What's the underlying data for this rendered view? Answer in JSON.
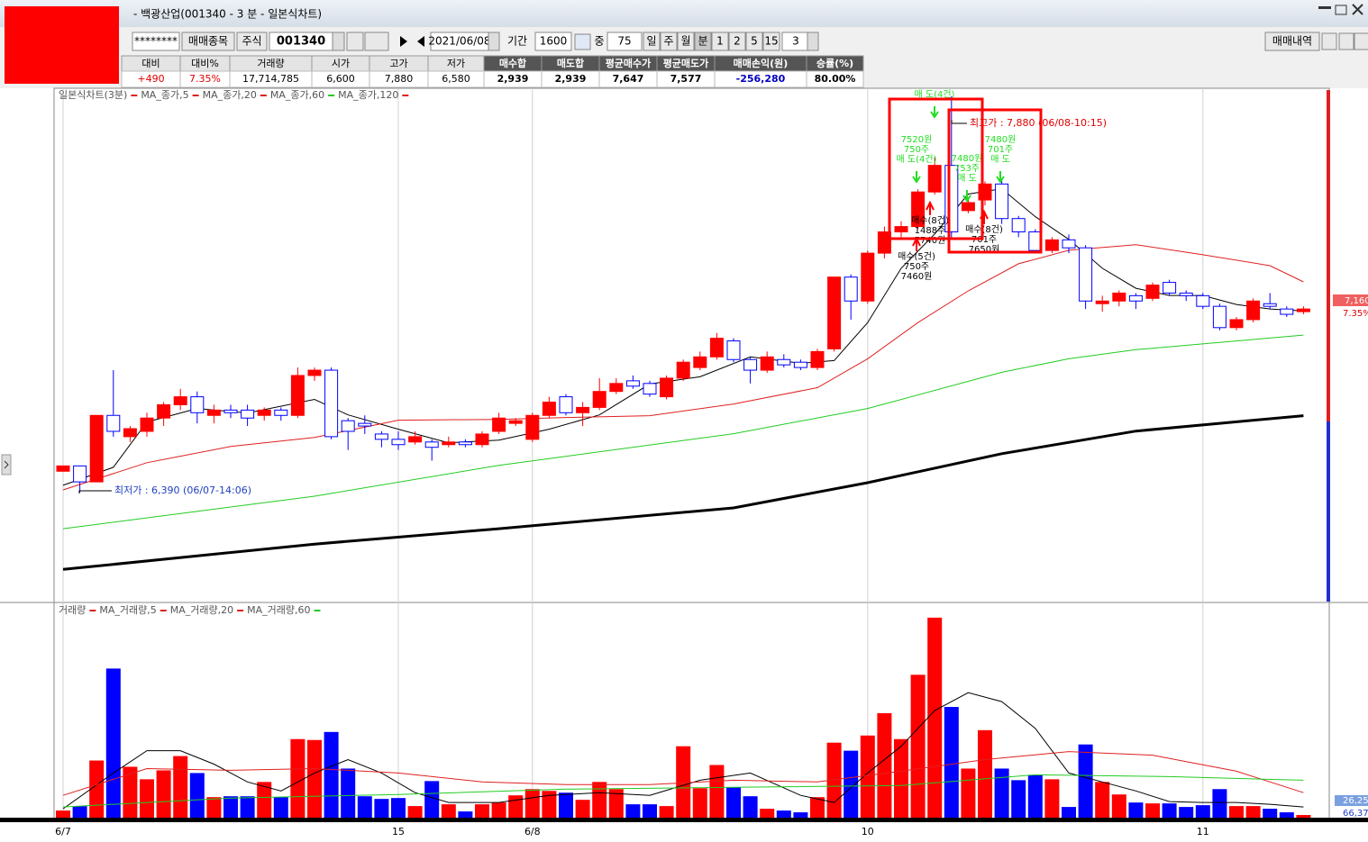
{
  "window_title": "- 백광산업(001340 - 3 분 - 일본식차트)",
  "toolbar": {
    "mask": "********",
    "trade_item_button": "매매종목",
    "market": "주식",
    "code": "001340",
    "date": "2021/06/08",
    "period_label": "기간",
    "period": "1600",
    "mid_label": "중",
    "mid": "75",
    "units": [
      "일",
      "주",
      "월",
      "분",
      "1",
      "2",
      "5",
      "15"
    ],
    "interval": "3",
    "history_button": "매매내역"
  },
  "info_table": {
    "headers": [
      "대비",
      "대비%",
      "거래량",
      "시가",
      "고가",
      "저가",
      "매수합",
      "매도합",
      "평균매수가",
      "평균매도가",
      "매매손익(원)",
      "승률(%)"
    ],
    "values": [
      "+490",
      "7.35%",
      "17,714,785",
      "6,600",
      "7,880",
      "6,580",
      "2,939",
      "2,939",
      "7,647",
      "7,577",
      "-256,280",
      "80.00%"
    ]
  },
  "chart_data": [
    {
      "type": "candlestick",
      "label": "일본식차트(3분)",
      "up_color": "#ff0000",
      "down_color": "#0000ff",
      "ylim": [
        5980,
        7910
      ],
      "categories": [
        "6/7",
        null,
        null,
        null,
        null,
        null,
        null,
        null,
        null,
        null,
        null,
        null,
        null,
        null,
        null,
        null,
        null,
        null,
        null,
        null,
        "15",
        null,
        null,
        null,
        null,
        null,
        null,
        null,
        "6/8",
        null,
        null,
        null,
        null,
        null,
        null,
        null,
        null,
        null,
        null,
        null,
        null,
        null,
        null,
        null,
        null,
        null,
        null,
        null,
        "10",
        null,
        null,
        null,
        null,
        null,
        null,
        null,
        null,
        null,
        null,
        null,
        null,
        null,
        null,
        null,
        null,
        null,
        null,
        null,
        "11",
        null,
        null,
        null,
        null,
        null,
        null
      ],
      "candles": [
        [
          6470,
          6490,
          6470,
          6490
        ],
        [
          6490,
          6490,
          6390,
          6430
        ],
        [
          6430,
          6680,
          6430,
          6680
        ],
        [
          6680,
          6850,
          6600,
          6620
        ],
        [
          6600,
          6640,
          6580,
          6630
        ],
        [
          6620,
          6690,
          6600,
          6670
        ],
        [
          6670,
          6730,
          6640,
          6720
        ],
        [
          6720,
          6780,
          6700,
          6750
        ],
        [
          6750,
          6770,
          6650,
          6690
        ],
        [
          6680,
          6720,
          6650,
          6700
        ],
        [
          6700,
          6720,
          6670,
          6690
        ],
        [
          6700,
          6720,
          6640,
          6670
        ],
        [
          6680,
          6710,
          6660,
          6700
        ],
        [
          6700,
          6710,
          6660,
          6680
        ],
        [
          6680,
          6860,
          6670,
          6830
        ],
        [
          6830,
          6860,
          6810,
          6850
        ],
        [
          6850,
          6860,
          6590,
          6600
        ],
        [
          6660,
          6670,
          6550,
          6620
        ],
        [
          6650,
          6680,
          6610,
          6640
        ],
        [
          6610,
          6620,
          6560,
          6590
        ],
        [
          6590,
          6620,
          6550,
          6570
        ],
        [
          6580,
          6620,
          6570,
          6600
        ],
        [
          6580,
          6590,
          6510,
          6560
        ],
        [
          6570,
          6600,
          6560,
          6580
        ],
        [
          6580,
          6590,
          6560,
          6570
        ],
        [
          6570,
          6620,
          6560,
          6610
        ],
        [
          6620,
          6690,
          6610,
          6670
        ],
        [
          6650,
          6670,
          6640,
          6660
        ],
        [
          6590,
          6690,
          6580,
          6680
        ],
        [
          6680,
          6750,
          6670,
          6730
        ],
        [
          6750,
          6760,
          6680,
          6690
        ],
        [
          6690,
          6730,
          6640,
          6710
        ],
        [
          6710,
          6820,
          6700,
          6770
        ],
        [
          6770,
          6820,
          6760,
          6800
        ],
        [
          6810,
          6830,
          6780,
          6790
        ],
        [
          6800,
          6810,
          6750,
          6760
        ],
        [
          6750,
          6830,
          6740,
          6820
        ],
        [
          6820,
          6890,
          6810,
          6880
        ],
        [
          6860,
          6920,
          6850,
          6900
        ],
        [
          6900,
          6990,
          6890,
          6970
        ],
        [
          6960,
          6970,
          6880,
          6890
        ],
        [
          6890,
          6900,
          6800,
          6850
        ],
        [
          6850,
          6920,
          6840,
          6900
        ],
        [
          6890,
          6910,
          6860,
          6870
        ],
        [
          6880,
          6890,
          6850,
          6860
        ],
        [
          6860,
          6930,
          6850,
          6920
        ],
        [
          6930,
          7200,
          6920,
          7200
        ],
        [
          7200,
          7210,
          7040,
          7110
        ],
        [
          7110,
          7300,
          7100,
          7290
        ],
        [
          7290,
          7390,
          7270,
          7370
        ],
        [
          7370,
          7410,
          7350,
          7390
        ],
        [
          7390,
          7530,
          7380,
          7520
        ],
        [
          7520,
          7650,
          7510,
          7620
        ],
        [
          7620,
          7880,
          7350,
          7370
        ],
        [
          7450,
          7500,
          7440,
          7480
        ],
        [
          7490,
          7560,
          7470,
          7550
        ],
        [
          7550,
          7570,
          7400,
          7420
        ],
        [
          7420,
          7430,
          7350,
          7370
        ],
        [
          7370,
          7380,
          7290,
          7300
        ],
        [
          7300,
          7350,
          7290,
          7340
        ],
        [
          7340,
          7360,
          7290,
          7310
        ],
        [
          7310,
          7320,
          7080,
          7110
        ],
        [
          7100,
          7130,
          7070,
          7110
        ],
        [
          7110,
          7150,
          7090,
          7140
        ],
        [
          7130,
          7140,
          7080,
          7110
        ],
        [
          7120,
          7180,
          7110,
          7170
        ],
        [
          7180,
          7190,
          7130,
          7140
        ],
        [
          7140,
          7150,
          7110,
          7130
        ],
        [
          7130,
          7140,
          7080,
          7090
        ],
        [
          7090,
          7100,
          7000,
          7010
        ],
        [
          7010,
          7050,
          7000,
          7040
        ],
        [
          7040,
          7120,
          7030,
          7110
        ],
        [
          7100,
          7140,
          7080,
          7090
        ],
        [
          7080,
          7090,
          7050,
          7060
        ],
        [
          7070,
          7090,
          7060,
          7080
        ]
      ],
      "series": [
        {
          "name": "MA_종가,5",
          "color": "#000000",
          "width": 1,
          "x": [
            0,
            3,
            5,
            8,
            11,
            15,
            17,
            20,
            23,
            26,
            29,
            32,
            35,
            38,
            41,
            44,
            46,
            48,
            50,
            52,
            54,
            56,
            58,
            60,
            62,
            64,
            66,
            68,
            70,
            72,
            74
          ],
          "values": [
            6417,
            6485,
            6655,
            6706,
            6689,
            6740,
            6682,
            6628,
            6577,
            6587,
            6628,
            6682,
            6798,
            6825,
            6900,
            6876,
            6886,
            7029,
            7233,
            7362,
            7512,
            7532,
            7427,
            7342,
            7233,
            7158,
            7131,
            7131,
            7097,
            7080,
            7073
          ]
        },
        {
          "name": "MA_종가,20",
          "color": "#e02020",
          "width": 1,
          "x": [
            0,
            5,
            10,
            15,
            20,
            26,
            30,
            35,
            40,
            45,
            48,
            51,
            54,
            57,
            60,
            64,
            68,
            72,
            74
          ],
          "values": [
            6400,
            6502,
            6563,
            6597,
            6662,
            6665,
            6672,
            6679,
            6723,
            6784,
            6893,
            7029,
            7148,
            7250,
            7301,
            7322,
            7284,
            7243,
            7182
          ]
        },
        {
          "name": "MA_종가,60",
          "color": "#22cc22",
          "width": 1,
          "x": [
            0,
            15,
            26,
            40,
            48,
            56,
            60,
            64,
            74
          ],
          "values": [
            6254,
            6376,
            6492,
            6611,
            6706,
            6842,
            6893,
            6927,
            6982
          ]
        },
        {
          "name": "MA_종가,120",
          "color": "#000000",
          "width": 3,
          "x": [
            0,
            15,
            26,
            40,
            48,
            56,
            64,
            74
          ],
          "values": [
            6101,
            6196,
            6254,
            6332,
            6427,
            6536,
            6621,
            6679
          ]
        }
      ],
      "annotations": [
        {
          "text": "최고가 : 7,880 (06/08-10:15)",
          "color": "#e00000"
        },
        {
          "text": "최저가 : 6,390 (06/07-14:06)",
          "color": "#2040c0"
        }
      ],
      "trade_marks": [
        {
          "lines": [
            "매 도(4건)"
          ],
          "color": "#22dd22"
        },
        {
          "lines": [
            "7520원",
            "750주",
            "매 도(4건)"
          ],
          "color": "#22dd22"
        },
        {
          "lines": [
            "7480원",
            "753주",
            "매 도"
          ],
          "color": "#22dd22"
        },
        {
          "lines": [
            "7480원",
            "701주",
            "매 도"
          ],
          "color": "#22dd22"
        },
        {
          "lines": [
            "매수(8건)",
            "1488주",
            "7740원"
          ],
          "color": "#000000"
        },
        {
          "lines": [
            "매수(8건)",
            "701주",
            "7650원"
          ],
          "color": "#000000"
        },
        {
          "lines": [
            "매수(5건)",
            "750주",
            "7460원"
          ],
          "color": "#000000"
        }
      ],
      "price_tag": "7,160",
      "change_tag": "7.35%"
    },
    {
      "type": "bar",
      "label": "거래량",
      "label_color": "#e02020",
      "ylim": [
        0,
        480000
      ],
      "values": [
        16000,
        26000,
        128000,
        334000,
        114000,
        86000,
        106000,
        138000,
        100000,
        46000,
        48000,
        48000,
        80000,
        46000,
        176000,
        174000,
        192000,
        110000,
        48000,
        42000,
        44000,
        26000,
        82000,
        30000,
        14000,
        30000,
        34000,
        50000,
        64000,
        60000,
        56000,
        40000,
        80000,
        64000,
        30000,
        30000,
        26000,
        160000,
        66000,
        118000,
        68000,
        48000,
        20000,
        16000,
        12000,
        46000,
        168000,
        150000,
        184000,
        234000,
        176000,
        320000,
        448000,
        248000,
        110000,
        196000,
        110000,
        84000,
        96000,
        86000,
        24000,
        164000,
        80000,
        52000,
        34000,
        32000,
        32000,
        24000,
        28000,
        64000,
        26000,
        26000,
        20000,
        12000,
        6000
      ],
      "series": [
        {
          "name": "MA_거래량,5",
          "color": "#000000",
          "x": [
            0,
            3,
            5,
            7,
            9,
            11,
            13,
            15,
            17,
            19,
            21,
            23,
            26,
            29,
            32,
            35,
            38,
            41,
            44,
            46,
            48,
            50,
            52,
            54,
            56,
            58,
            60,
            62,
            64,
            66,
            68,
            70,
            72,
            74
          ],
          "values": [
            20000,
            100000,
            150000,
            150000,
            120000,
            80000,
            60000,
            100000,
            130000,
            100000,
            56000,
            34000,
            34000,
            50000,
            56000,
            50000,
            84000,
            100000,
            50000,
            34000,
            100000,
            160000,
            240000,
            280000,
            260000,
            200000,
            100000,
            80000,
            60000,
            36000,
            34000,
            34000,
            30000,
            24000
          ]
        },
        {
          "name": "MA_거래량,20",
          "color": "#e02020",
          "x": [
            0,
            5,
            10,
            15,
            20,
            25,
            30,
            35,
            40,
            45,
            50,
            55,
            60,
            65,
            70,
            74
          ],
          "values": [
            50000,
            110000,
            106000,
            110000,
            100000,
            80000,
            74000,
            74000,
            84000,
            80000,
            104000,
            130000,
            148000,
            140000,
            104000,
            56000
          ]
        },
        {
          "name": "MA_거래량,60",
          "color": "#22cc22",
          "x": [
            0,
            10,
            20,
            30,
            40,
            50,
            58,
            66,
            74
          ],
          "values": [
            24000,
            44000,
            52000,
            64000,
            68000,
            72000,
            96000,
            92000,
            84000
          ]
        }
      ],
      "tags": [
        "26,25",
        "66,37"
      ]
    }
  ]
}
